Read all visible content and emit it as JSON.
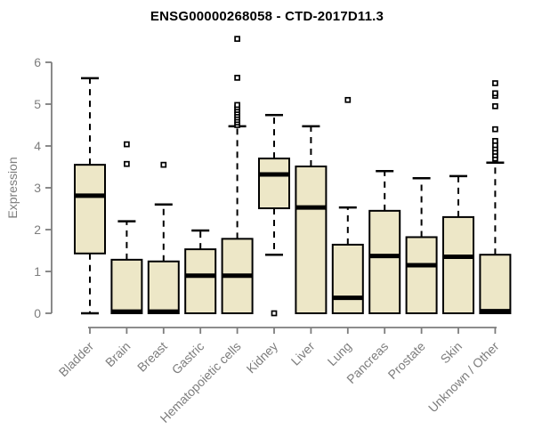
{
  "chart_data": {
    "type": "boxplot",
    "title": "ENSG00000268058 - CTD-2017D11.3",
    "ylabel": "Expression",
    "xlabel": "",
    "ylim": [
      0,
      6
    ],
    "yticks": [
      0,
      1,
      2,
      3,
      4,
      5,
      6
    ],
    "grid": false,
    "legend": false,
    "x_label_rotation_deg": 45,
    "categories": [
      "Bladder",
      "Brain",
      "Breast",
      "Gastric",
      "Hematopoietic cells",
      "Kidney",
      "Liver",
      "Lung",
      "Pancreas",
      "Prostate",
      "Skin",
      "Unknown / Other"
    ],
    "series": [
      {
        "name": "Bladder",
        "whisker_low": 0,
        "q1": 1.43,
        "median": 2.81,
        "q3": 3.55,
        "whisker_high": 5.62,
        "outliers": []
      },
      {
        "name": "Brain",
        "whisker_low": 0,
        "q1": 0,
        "median": 0.04,
        "q3": 1.28,
        "whisker_high": 2.2,
        "outliers": [
          3.57,
          4.04
        ]
      },
      {
        "name": "Breast",
        "whisker_low": 0,
        "q1": 0,
        "median": 0.04,
        "q3": 1.24,
        "whisker_high": 2.6,
        "outliers": [
          3.55
        ]
      },
      {
        "name": "Gastric",
        "whisker_low": 0,
        "q1": 0,
        "median": 0.9,
        "q3": 1.53,
        "whisker_high": 1.98,
        "outliers": []
      },
      {
        "name": "Hematopoietic cells",
        "whisker_low": 0,
        "q1": 0,
        "median": 0.9,
        "q3": 1.78,
        "whisker_high": 4.47,
        "outliers": [
          4.5,
          4.56,
          4.62,
          4.68,
          4.74,
          4.8,
          4.86,
          4.92,
          4.98,
          5.63,
          6.56
        ]
      },
      {
        "name": "Kidney",
        "whisker_low": 1.4,
        "q1": 2.51,
        "median": 3.32,
        "q3": 3.7,
        "whisker_high": 4.74,
        "outliers": [
          0
        ]
      },
      {
        "name": "Liver",
        "whisker_low": 0,
        "q1": 0,
        "median": 2.53,
        "q3": 3.51,
        "whisker_high": 4.47,
        "outliers": []
      },
      {
        "name": "Lung",
        "whisker_low": 0,
        "q1": 0,
        "median": 0.37,
        "q3": 1.64,
        "whisker_high": 2.53,
        "outliers": [
          5.1
        ]
      },
      {
        "name": "Pancreas",
        "whisker_low": 0,
        "q1": 0,
        "median": 1.37,
        "q3": 2.45,
        "whisker_high": 3.4,
        "outliers": []
      },
      {
        "name": "Prostate",
        "whisker_low": 0,
        "q1": 0,
        "median": 1.15,
        "q3": 1.82,
        "whisker_high": 3.23,
        "outliers": []
      },
      {
        "name": "Skin",
        "whisker_low": 0,
        "q1": 0,
        "median": 1.35,
        "q3": 2.3,
        "whisker_high": 3.28,
        "outliers": []
      },
      {
        "name": "Unknown / Other",
        "whisker_low": 0,
        "q1": 0,
        "median": 0.05,
        "q3": 1.4,
        "whisker_high": 3.6,
        "outliers": [
          3.7,
          3.78,
          3.86,
          3.94,
          4.02,
          4.12,
          4.4,
          4.95,
          5.2,
          5.26,
          5.5
        ]
      }
    ]
  },
  "colors": {
    "box_fill": "#ede7c7",
    "box_border": "#000000",
    "median": "#000000",
    "whisker": "#000000",
    "outlier_fill": "#ffffff",
    "axis": "#7d7d7d",
    "title": "#000000",
    "background": "#ffffff"
  }
}
